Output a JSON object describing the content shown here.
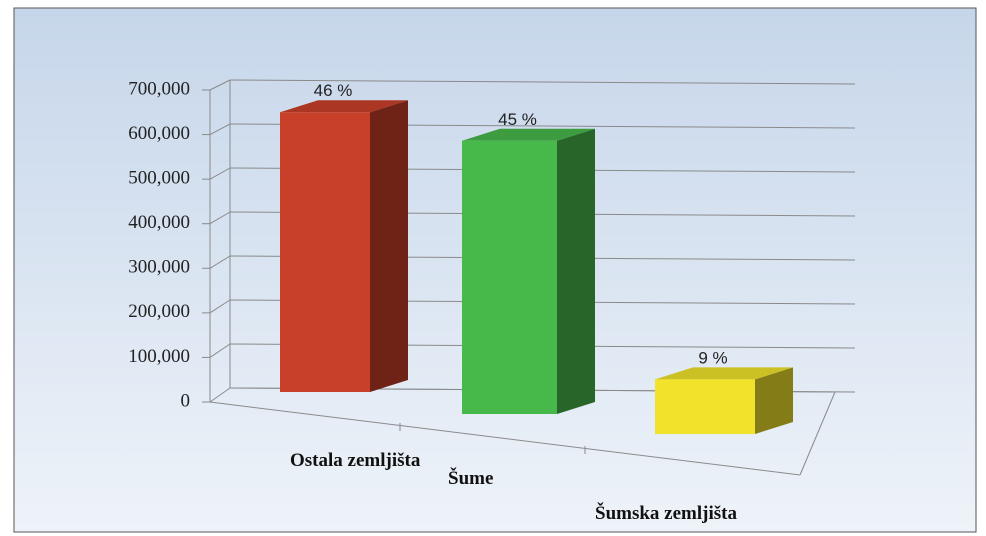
{
  "chart_data": {
    "type": "bar3d",
    "categories": [
      "Ostala zemljišta",
      "Šume",
      "Šumska zemljišta"
    ],
    "values": [
      640000,
      625000,
      125000
    ],
    "percent_labels": [
      "46 %",
      "45 %",
      "9 %"
    ],
    "colors": [
      "#c9402a",
      "#47b84a",
      "#f0e32a"
    ],
    "ylim": [
      0,
      700000
    ],
    "yticks": [
      0,
      {
        "value": 100000,
        "label": "100,000"
      },
      {
        "value": 200000,
        "label": "200,000"
      },
      {
        "value": 300000,
        "label": "300,000"
      },
      {
        "value": 400000,
        "label": "400,000"
      },
      {
        "value": 500000,
        "label": "500,000"
      },
      {
        "value": 600000,
        "label": "600,000"
      },
      {
        "value": 700000,
        "label": "700,000"
      }
    ],
    "grid": true
  }
}
